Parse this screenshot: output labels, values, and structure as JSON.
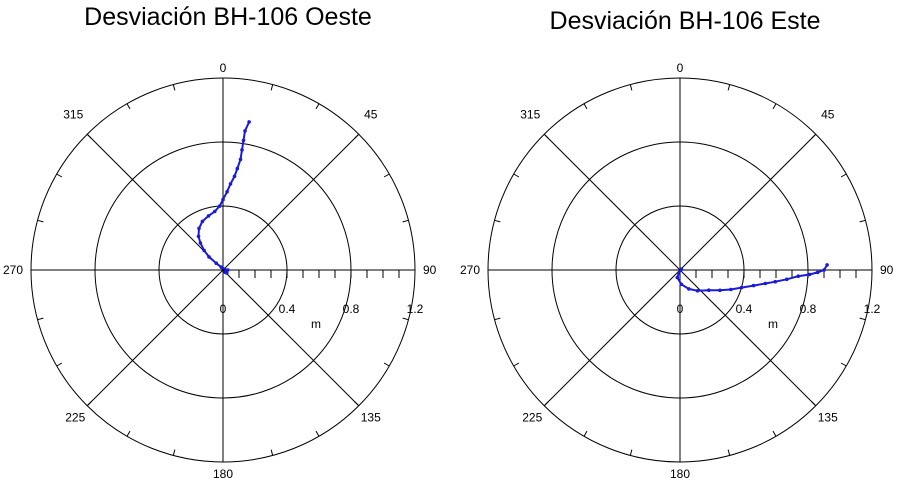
{
  "chart_data": [
    {
      "type": "scatter",
      "subtype": "polar",
      "title": "Desviación BH-106 Oeste",
      "radial_label": "m",
      "radial_ticks": [
        "0",
        "0.4",
        "0.8",
        "1.2"
      ],
      "rlim": [
        0,
        1.2
      ],
      "angle_ticks": [
        "0",
        "45",
        "90",
        "135",
        "180",
        "225",
        "270",
        "315"
      ],
      "angle_direction": "clockwise, 0 at top",
      "grid": true,
      "color": "#1a1adb",
      "points": [
        {
          "azimuth": 134,
          "r": 0.02
        },
        {
          "azimuth": 128,
          "r": 0.03
        },
        {
          "azimuth": 90,
          "r": 0.03
        },
        {
          "azimuth": 330,
          "r": 0.02
        },
        {
          "azimuth": 315,
          "r": 0.06
        },
        {
          "azimuth": 313,
          "r": 0.12
        },
        {
          "azimuth": 316,
          "r": 0.17
        },
        {
          "azimuth": 320,
          "r": 0.22
        },
        {
          "azimuth": 324,
          "r": 0.26
        },
        {
          "azimuth": 330,
          "r": 0.3
        },
        {
          "azimuth": 337,
          "r": 0.33
        },
        {
          "azimuth": 345,
          "r": 0.35
        },
        {
          "azimuth": 352,
          "r": 0.37
        },
        {
          "azimuth": 357,
          "r": 0.4
        },
        {
          "azimuth": 0,
          "r": 0.44
        },
        {
          "azimuth": 3,
          "r": 0.49
        },
        {
          "azimuth": 5,
          "r": 0.54
        },
        {
          "azimuth": 7,
          "r": 0.59
        },
        {
          "azimuth": 8,
          "r": 0.64
        },
        {
          "azimuth": 9,
          "r": 0.7
        },
        {
          "azimuth": 9,
          "r": 0.76
        },
        {
          "azimuth": 9,
          "r": 0.82
        },
        {
          "azimuth": 9,
          "r": 0.88
        },
        {
          "azimuth": 10,
          "r": 0.94
        }
      ]
    },
    {
      "type": "scatter",
      "subtype": "polar",
      "title": "Desviación BH-106 Este",
      "radial_label": "m",
      "radial_ticks": [
        "0",
        "0.4",
        "0.8",
        "1.2"
      ],
      "rlim": [
        0,
        1.2
      ],
      "angle_ticks": [
        "0",
        "45",
        "90",
        "135",
        "180",
        "225",
        "270",
        "315"
      ],
      "angle_direction": "clockwise, 0 at top",
      "grid": true,
      "color": "#1a1adb",
      "points": [
        {
          "azimuth": 60,
          "r": 0.01
        },
        {
          "azimuth": 200,
          "r": 0.02
        },
        {
          "azimuth": 200,
          "r": 0.05
        },
        {
          "azimuth": 175,
          "r": 0.09
        },
        {
          "azimuth": 155,
          "r": 0.13
        },
        {
          "azimuth": 140,
          "r": 0.17
        },
        {
          "azimuth": 125,
          "r": 0.22
        },
        {
          "azimuth": 117,
          "r": 0.28
        },
        {
          "azimuth": 111,
          "r": 0.34
        },
        {
          "azimuth": 106,
          "r": 0.4
        },
        {
          "azimuth": 102,
          "r": 0.47
        },
        {
          "azimuth": 99,
          "r": 0.54
        },
        {
          "azimuth": 97,
          "r": 0.6
        },
        {
          "azimuth": 95,
          "r": 0.67
        },
        {
          "azimuth": 93,
          "r": 0.74
        },
        {
          "azimuth": 92,
          "r": 0.81
        },
        {
          "azimuth": 91,
          "r": 0.86
        },
        {
          "azimuth": 90,
          "r": 0.9
        },
        {
          "azimuth": 88,
          "r": 0.92
        }
      ]
    }
  ]
}
